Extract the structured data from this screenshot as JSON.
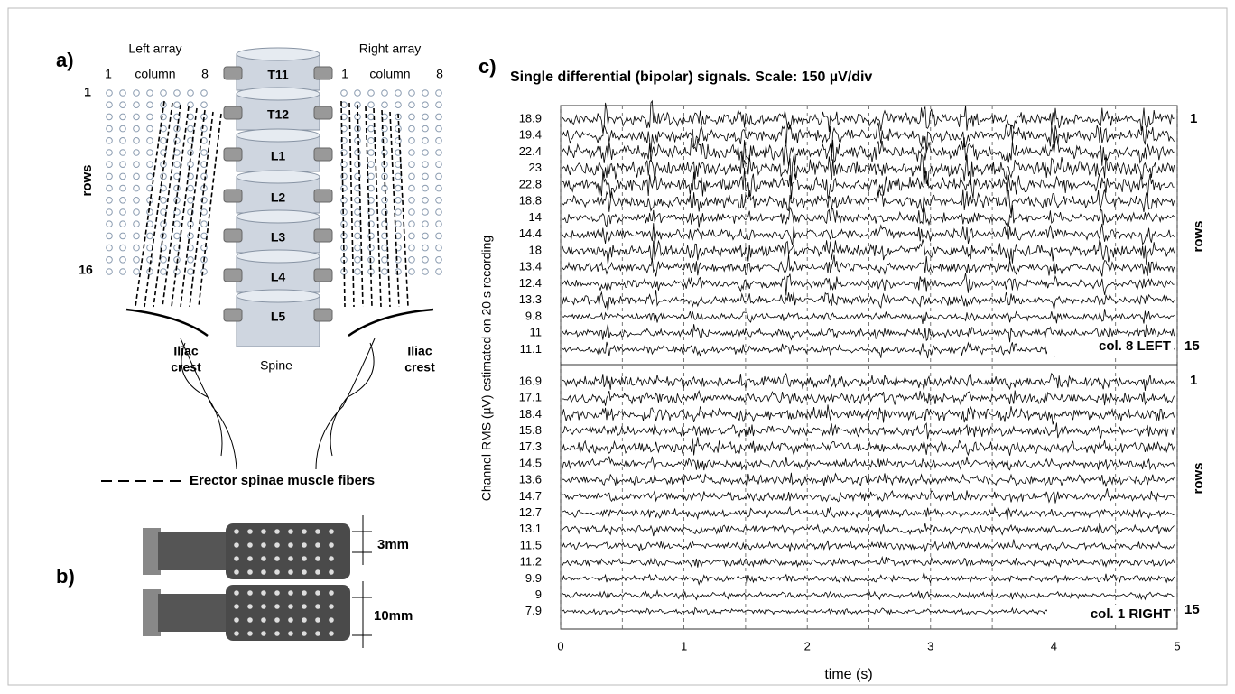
{
  "panel_a": {
    "label": "a)",
    "left_array": "Left array",
    "right_array": "Right array",
    "column_first": "1",
    "column_word": "column",
    "column_last": "8",
    "row_first": "1",
    "row_word": "rows",
    "row_last": "16",
    "vertebrae": [
      "T11",
      "T12",
      "L1",
      "L2",
      "L3",
      "L4",
      "L5"
    ],
    "spine": "Spine",
    "iliac_crest": [
      "Iliac",
      "crest"
    ],
    "legend": "Erector spinae muscle fibers"
  },
  "panel_b": {
    "label": "b)",
    "small_spacing": "3mm",
    "large_spacing": "10mm"
  },
  "panel_c": {
    "label": "c)",
    "title": "Single differential (bipolar) signals. Scale:  150 µV/div",
    "y_label": "Channel RMS (µV) estimated on 20 s recording",
    "x_label": "time (s)",
    "xlim": [
      0,
      5
    ],
    "xticks": [
      0,
      1,
      2,
      3,
      4,
      5
    ],
    "left": {
      "annotation": "col. 8 LEFT",
      "rms": [
        18.9,
        19.4,
        22.4,
        23.0,
        22.8,
        18.8,
        14.0,
        14.4,
        18.0,
        13.4,
        12.4,
        13.3,
        9.8,
        11.0,
        11.1
      ]
    },
    "right": {
      "annotation": "col. 1 RIGHT",
      "rms": [
        16.9,
        17.1,
        18.4,
        15.8,
        17.3,
        14.5,
        13.6,
        14.7,
        12.7,
        13.1,
        11.5,
        11.2,
        9.9,
        9.0,
        7.9
      ]
    },
    "row_first": "1",
    "row_word": "rows",
    "row_last": "15"
  }
}
